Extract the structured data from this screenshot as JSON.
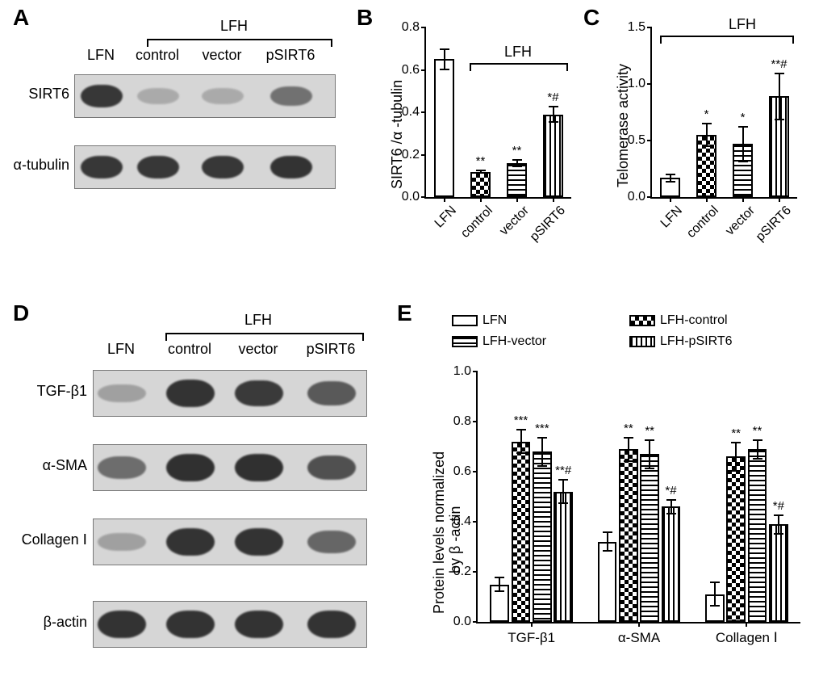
{
  "panelLabels": {
    "A": "A",
    "B": "B",
    "C": "C",
    "D": "D",
    "E": "E"
  },
  "panelA": {
    "topGroupLabel": "LFH",
    "lanes": [
      "LFN",
      "control",
      "vector",
      "pSIRT6"
    ],
    "rows": [
      "SIRT6",
      "α-tubulin"
    ],
    "bands": {
      "SIRT6": [
        0.95,
        0.15,
        0.15,
        0.55
      ],
      "α-tubulin": [
        0.95,
        0.95,
        0.95,
        0.98
      ]
    },
    "blot_bg": "#d6d6d6",
    "band_color": "#2b2b2b"
  },
  "panelB": {
    "ylabel": "SIRT6 /α -tubulin",
    "ylim": [
      0,
      0.8
    ],
    "ytick_step": 0.2,
    "groupLabel": "LFH",
    "categories": [
      "LFN",
      "control",
      "vector",
      "pSIRT6"
    ],
    "values": [
      0.65,
      0.12,
      0.16,
      0.39
    ],
    "err": [
      0.05,
      0.01,
      0.02,
      0.04
    ],
    "sig": [
      "",
      "**",
      "**",
      "*#"
    ],
    "fills": [
      "open",
      "check",
      "hstripe",
      "vstripe"
    ]
  },
  "panelC": {
    "ylabel": "Telomerase activity",
    "ylim": [
      0,
      1.5
    ],
    "ytick_step": 0.5,
    "groupLabel": "LFH",
    "categories": [
      "LFN",
      "control",
      "vector",
      "pSIRT6"
    ],
    "values": [
      0.17,
      0.55,
      0.47,
      0.89
    ],
    "err": [
      0.04,
      0.11,
      0.16,
      0.21
    ],
    "sig": [
      "",
      "*",
      "*",
      "**#"
    ],
    "fills": [
      "open",
      "check",
      "hstripe",
      "vstripe"
    ]
  },
  "panelD": {
    "topGroupLabel": "LFH",
    "lanes": [
      "LFN",
      "control",
      "vector",
      "pSIRT6"
    ],
    "rows": [
      "TGF-β1",
      "α-SMA",
      "Collagen Ⅰ",
      "β-actin"
    ],
    "bands": {
      "TGF-β1": [
        0.2,
        0.95,
        0.9,
        0.7
      ],
      "α-SMA": [
        0.55,
        0.98,
        0.98,
        0.75
      ],
      "Collagen Ⅰ": [
        0.2,
        0.95,
        0.95,
        0.6
      ],
      "β-actin": [
        0.95,
        0.95,
        0.95,
        0.95
      ]
    },
    "blot_bg": "#d6d6d6",
    "band_color": "#2b2b2b"
  },
  "panelE": {
    "ylabel_line1": "Protein levels normalized",
    "ylabel_line2": "by β -actin",
    "ylim": [
      0,
      1.0
    ],
    "ytick_step": 0.2,
    "legend": [
      {
        "label": "LFN",
        "fill": "open"
      },
      {
        "label": "LFH-control",
        "fill": "check"
      },
      {
        "label": "LFH-vector",
        "fill": "hstripe"
      },
      {
        "label": "LFH-pSIRT6",
        "fill": "vstripe"
      }
    ],
    "groups": [
      "TGF-β1",
      "α-SMA",
      "Collagen Ⅰ"
    ],
    "series": [
      {
        "values": [
          0.15,
          0.72,
          0.68,
          0.52
        ],
        "err": [
          0.03,
          0.05,
          0.06,
          0.05
        ],
        "sig": [
          "",
          "***",
          "***",
          "**#"
        ]
      },
      {
        "values": [
          0.32,
          0.69,
          0.67,
          0.46
        ],
        "err": [
          0.04,
          0.05,
          0.06,
          0.03
        ],
        "sig": [
          "",
          "**",
          "**",
          "*#"
        ]
      },
      {
        "values": [
          0.11,
          0.66,
          0.69,
          0.39
        ],
        "err": [
          0.05,
          0.06,
          0.04,
          0.04
        ],
        "sig": [
          "",
          "**",
          "**",
          "*#"
        ]
      }
    ],
    "fills": [
      "open",
      "check",
      "hstripe",
      "vstripe"
    ]
  },
  "colors": {
    "axis": "#000000",
    "text": "#000000",
    "blot_border": "#777777"
  }
}
